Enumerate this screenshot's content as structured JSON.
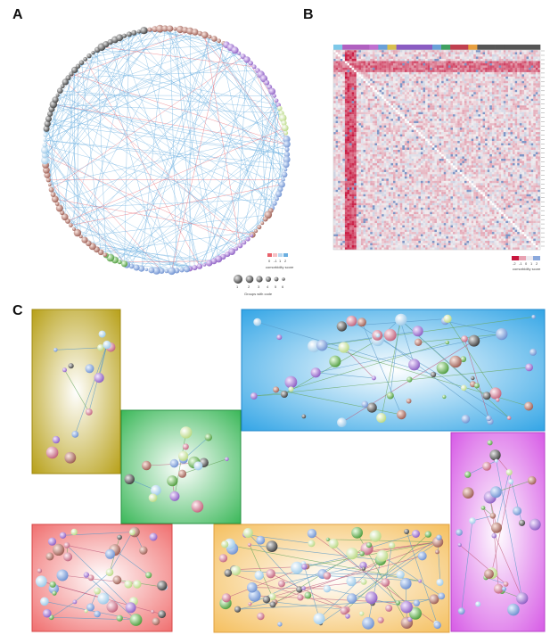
{
  "panels": {
    "a": {
      "letter": "A"
    },
    "b": {
      "letter": "B"
    },
    "c": {
      "letter": "C"
    }
  },
  "circle_plot": {
    "legend_title": "comorbidity score",
    "legend_ticks": [
      "0",
      "-1",
      "1",
      "2"
    ],
    "size_legend_title": "Groups with code",
    "size_legend_ticks": [
      "1",
      "2",
      "3",
      "4",
      "5",
      "6"
    ],
    "colors": {
      "positive_edge": "#e8606a",
      "negative_edge": "#6aaee0",
      "grey_nodes": "#7a7a7a"
    }
  },
  "heatmap": {
    "legend_title": "comorbidity score",
    "legend_ticks": [
      "-2",
      "-1",
      "0",
      "1",
      "2"
    ],
    "colors": {
      "low": "#2f5aa8",
      "mid": "#f2eef0",
      "high": "#c8163e"
    }
  },
  "network_boxes": [
    {
      "name": "olive",
      "color": "#b8a11a"
    },
    {
      "name": "green",
      "color": "#2ea84a"
    },
    {
      "name": "blue",
      "color": "#2a9ee0"
    },
    {
      "name": "red",
      "color": "#e85a5a"
    },
    {
      "name": "orange",
      "color": "#f2b04a"
    },
    {
      "name": "magenta",
      "color": "#d24fe0"
    }
  ]
}
